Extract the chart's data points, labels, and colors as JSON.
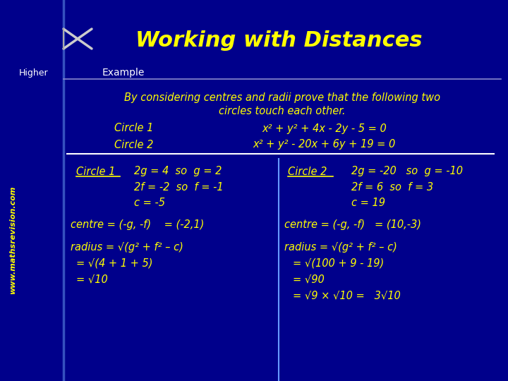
{
  "bg_color": "#00008B",
  "title_text": "Working with Distances",
  "title_color": "#FFFF00",
  "higher_text": "Higher",
  "example_text": "Example",
  "website_text": "www.mathsrevision.com",
  "yellow": "#FFFF00",
  "white": "#FFFFFF",
  "line1": "By considering centres and radii prove that the following two",
  "line2": "circles touch each other.",
  "circle1_label": "Circle 1",
  "circle1_eq": "x² + y² + 4x - 2y - 5 = 0",
  "circle2_label": "Circle 2",
  "circle2_eq": "x² + y² - 20x + 6y + 19 = 0",
  "left_header": "Circle 1",
  "left_line1": "2g = 4  so  g = 2",
  "left_line2": "2f = -2  so  f = -1",
  "left_line3": "c = -5",
  "left_centre": "centre = (-g, -f)    = (-2,1)",
  "left_radius1": "radius = √(g² + f² – c)",
  "left_radius2": "= √(4 + 1 + 5)",
  "left_radius3": "= √10",
  "right_header": "Circle 2",
  "right_line1": "2g = -20   so  g = -10",
  "right_line2": "2f = 6  so  f = 3",
  "right_line3": "c = 19",
  "right_centre": "centre = (-g, -f)   = (10,-3)",
  "right_radius1": "radius = √(g² + f² – c)",
  "right_radius2": "= √(100 + 9 - 19)",
  "right_radius3": "= √90",
  "right_radius4": "= √9 × √10 =   3√10"
}
